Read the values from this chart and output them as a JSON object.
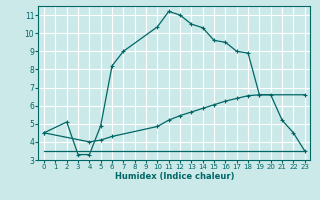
{
  "xlabel": "Humidex (Indice chaleur)",
  "bg_color": "#cce9e9",
  "grid_color": "#ffffff",
  "line_color": "#006666",
  "xlim": [
    -0.5,
    23.5
  ],
  "ylim": [
    3,
    11.5
  ],
  "xticks": [
    0,
    1,
    2,
    3,
    4,
    5,
    6,
    7,
    8,
    9,
    10,
    11,
    12,
    13,
    14,
    15,
    16,
    17,
    18,
    19,
    20,
    21,
    22,
    23
  ],
  "yticks": [
    3,
    4,
    5,
    6,
    7,
    8,
    9,
    10,
    11
  ],
  "curve1_x": [
    0,
    2,
    3,
    4,
    5,
    6,
    7,
    10,
    11,
    12,
    13,
    14,
    15,
    16,
    17,
    18,
    19,
    20,
    21,
    22,
    23
  ],
  "curve1_y": [
    4.5,
    5.1,
    3.3,
    3.3,
    4.9,
    8.2,
    9.0,
    10.35,
    11.2,
    11.0,
    10.5,
    10.3,
    9.6,
    9.5,
    9.0,
    8.9,
    6.6,
    6.6,
    5.2,
    4.5,
    3.5
  ],
  "curve2_x": [
    0,
    4,
    5,
    6,
    10,
    11,
    12,
    13,
    14,
    15,
    16,
    17,
    18,
    19,
    23
  ],
  "curve2_y": [
    4.5,
    4.0,
    4.1,
    4.3,
    4.85,
    5.2,
    5.45,
    5.65,
    5.85,
    6.05,
    6.25,
    6.4,
    6.55,
    6.6,
    6.6
  ],
  "curve3_x": [
    0,
    4,
    5,
    6,
    19,
    23
  ],
  "curve3_y": [
    3.5,
    3.5,
    3.5,
    3.5,
    3.5,
    3.5
  ]
}
